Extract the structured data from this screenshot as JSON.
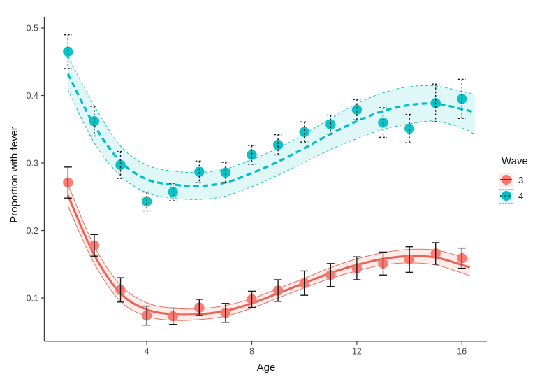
{
  "chart_data": {
    "type": "scatter",
    "title": "",
    "xlabel": "Age",
    "ylabel": "Proportion with fever",
    "x_ticks": [
      4,
      8,
      12,
      16
    ],
    "y_ticks": [
      0.1,
      0.2,
      0.3,
      0.4,
      0.5
    ],
    "xlim": [
      0.1,
      16.95
    ],
    "ylim": [
      0.036,
      0.516
    ],
    "grid": false,
    "legend": {
      "title": "Wave",
      "position": "right",
      "entries": [
        {
          "label": "3"
        },
        {
          "label": "4"
        }
      ]
    },
    "ages": [
      1,
      2,
      3,
      4,
      5,
      6,
      7,
      8,
      9,
      10,
      11,
      12,
      13,
      14,
      15,
      16
    ],
    "series": [
      {
        "name": "3",
        "color": "#F8766D",
        "line_color": "#EC6155",
        "band_fill": "rgba(248,118,109,0.14)",
        "legend_key_border": "#F2A59E",
        "legend_key_line": "#8B2F28",
        "linetype": "solid",
        "errorbar_color": "#1a1a1a",
        "errorbar_linetype": "solid",
        "points": [
          0.271,
          0.178,
          0.112,
          0.074,
          0.073,
          0.086,
          0.078,
          0.098,
          0.111,
          0.122,
          0.134,
          0.144,
          0.151,
          0.157,
          0.166,
          0.159
        ],
        "err_lo": [
          0.248,
          0.162,
          0.094,
          0.06,
          0.061,
          0.074,
          0.064,
          0.086,
          0.095,
          0.104,
          0.117,
          0.127,
          0.134,
          0.138,
          0.15,
          0.144
        ],
        "err_hi": [
          0.294,
          0.194,
          0.13,
          0.088,
          0.085,
          0.098,
          0.092,
          0.11,
          0.127,
          0.14,
          0.151,
          0.161,
          0.168,
          0.176,
          0.182,
          0.174
        ],
        "smooth_x": [
          1,
          2,
          3,
          4,
          5,
          6,
          7,
          8,
          9,
          10,
          11,
          12,
          13,
          14,
          15,
          16,
          16.3
        ],
        "smooth": [
          0.252,
          0.164,
          0.107,
          0.083,
          0.076,
          0.076,
          0.081,
          0.092,
          0.107,
          0.122,
          0.137,
          0.149,
          0.158,
          0.162,
          0.16,
          0.149,
          0.145
        ],
        "ci_upper": [
          0.268,
          0.177,
          0.119,
          0.093,
          0.085,
          0.084,
          0.089,
          0.099,
          0.114,
          0.129,
          0.145,
          0.158,
          0.167,
          0.172,
          0.171,
          0.161,
          0.157
        ],
        "ci_lower": [
          0.236,
          0.151,
          0.095,
          0.073,
          0.067,
          0.068,
          0.073,
          0.085,
          0.1,
          0.115,
          0.129,
          0.14,
          0.149,
          0.152,
          0.149,
          0.137,
          0.133
        ]
      },
      {
        "name": "4",
        "color": "#00BFC4",
        "line_color": "#00BFC4",
        "band_fill": "rgba(0,191,196,0.12)",
        "legend_key_border": "#72CFD2",
        "legend_key_line": "#0B6E72",
        "linetype": "dashed",
        "errorbar_color": "#1a1a1a",
        "errorbar_linetype": "dotted",
        "points": [
          0.465,
          0.362,
          0.297,
          0.243,
          0.257,
          0.287,
          0.286,
          0.312,
          0.327,
          0.346,
          0.357,
          0.379,
          0.36,
          0.351,
          0.389,
          0.395
        ],
        "err_lo": [
          0.44,
          0.34,
          0.277,
          0.229,
          0.244,
          0.271,
          0.271,
          0.298,
          0.312,
          0.331,
          0.343,
          0.364,
          0.338,
          0.33,
          0.361,
          0.366
        ],
        "err_hi": [
          0.49,
          0.384,
          0.317,
          0.257,
          0.27,
          0.303,
          0.301,
          0.326,
          0.342,
          0.361,
          0.371,
          0.394,
          0.382,
          0.372,
          0.417,
          0.424
        ],
        "smooth_x": [
          1,
          2,
          3,
          4,
          5,
          6,
          7,
          8,
          9,
          10,
          11,
          12,
          13,
          14,
          15,
          16,
          16.5
        ],
        "smooth": [
          0.432,
          0.356,
          0.302,
          0.276,
          0.268,
          0.266,
          0.271,
          0.285,
          0.302,
          0.322,
          0.343,
          0.362,
          0.377,
          0.386,
          0.388,
          0.38,
          0.375
        ],
        "ci_upper": [
          0.458,
          0.385,
          0.325,
          0.297,
          0.288,
          0.286,
          0.291,
          0.305,
          0.322,
          0.343,
          0.366,
          0.388,
          0.404,
          0.413,
          0.414,
          0.406,
          0.402
        ],
        "ci_lower": [
          0.408,
          0.33,
          0.281,
          0.256,
          0.248,
          0.246,
          0.251,
          0.265,
          0.282,
          0.301,
          0.32,
          0.336,
          0.35,
          0.358,
          0.362,
          0.352,
          0.342
        ]
      }
    ]
  }
}
